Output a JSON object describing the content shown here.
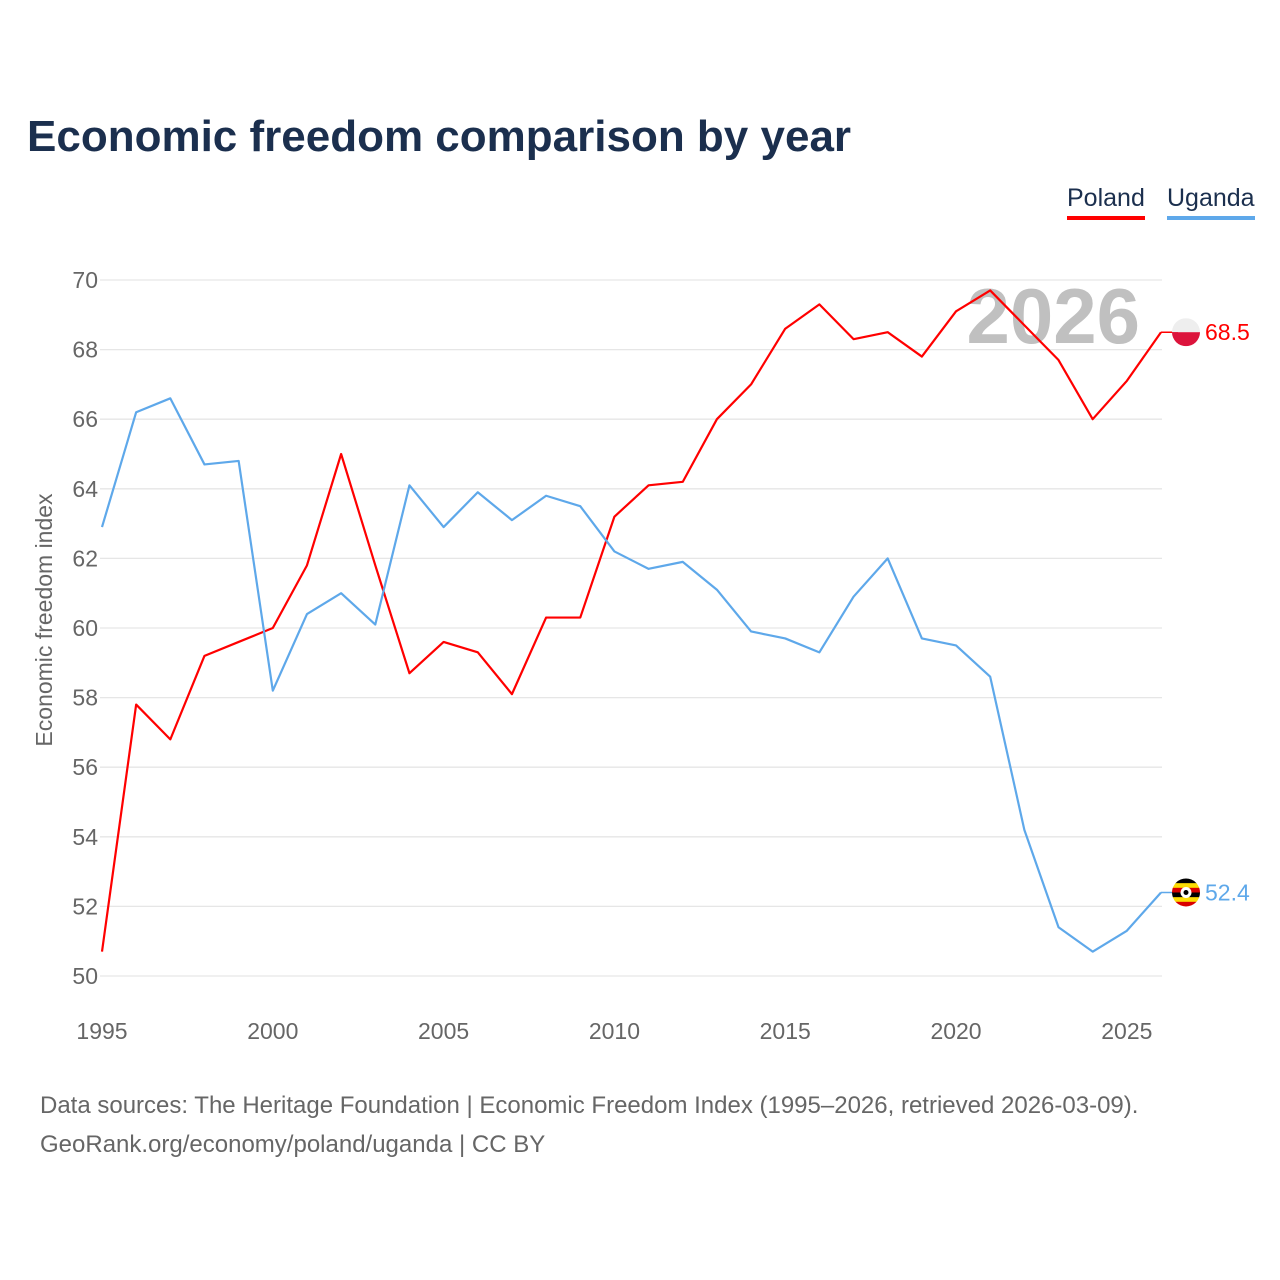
{
  "title": "Economic freedom comparison by year",
  "watermark_year": "2026",
  "footer": {
    "line1": "Data sources: The Heritage Foundation | Economic Freedom Index (1995–2026, retrieved 2026-03-09).",
    "line2": "GeoRank.org/economy/poland/uganda | CC BY"
  },
  "chart_data": {
    "type": "line",
    "title": "Economic freedom comparison by year",
    "xlabel": "",
    "ylabel": "Economic freedom index",
    "xlim": [
      1995,
      2026
    ],
    "ylim": [
      50,
      70
    ],
    "x_ticks": [
      "1995",
      "2000",
      "2005",
      "2010",
      "2015",
      "2020",
      "2025"
    ],
    "y_ticks": [
      "50",
      "52",
      "54",
      "56",
      "58",
      "60",
      "62",
      "64",
      "66",
      "68",
      "70"
    ],
    "grid": true,
    "legend": "top-right",
    "x": [
      1995,
      1996,
      1997,
      1998,
      1999,
      2000,
      2001,
      2002,
      2003,
      2004,
      2005,
      2006,
      2007,
      2008,
      2009,
      2010,
      2011,
      2012,
      2013,
      2014,
      2015,
      2016,
      2017,
      2018,
      2019,
      2020,
      2021,
      2022,
      2023,
      2024,
      2025,
      2026
    ],
    "series": [
      {
        "name": "Poland",
        "color": "#ff0000",
        "end_label": "68.5",
        "flag": "poland-flag",
        "values": [
          50.7,
          57.8,
          56.8,
          59.2,
          59.6,
          60.0,
          61.8,
          65.0,
          61.8,
          58.7,
          59.6,
          59.3,
          58.1,
          60.3,
          60.3,
          63.2,
          64.1,
          64.2,
          66.0,
          67.0,
          68.6,
          69.3,
          68.3,
          68.5,
          67.8,
          69.1,
          69.7,
          68.7,
          67.7,
          66.0,
          67.1,
          68.5
        ]
      },
      {
        "name": "Uganda",
        "color": "#5ea8ea",
        "end_label": "52.4",
        "flag": "uganda-flag",
        "values": [
          62.9,
          66.2,
          66.6,
          64.7,
          64.8,
          58.2,
          60.4,
          61.0,
          60.1,
          64.1,
          62.9,
          63.9,
          63.1,
          63.8,
          63.5,
          62.2,
          61.7,
          61.9,
          61.1,
          59.9,
          59.7,
          59.3,
          60.9,
          62.0,
          59.7,
          59.5,
          58.6,
          54.2,
          51.4,
          50.7,
          51.3,
          52.4
        ]
      }
    ]
  }
}
